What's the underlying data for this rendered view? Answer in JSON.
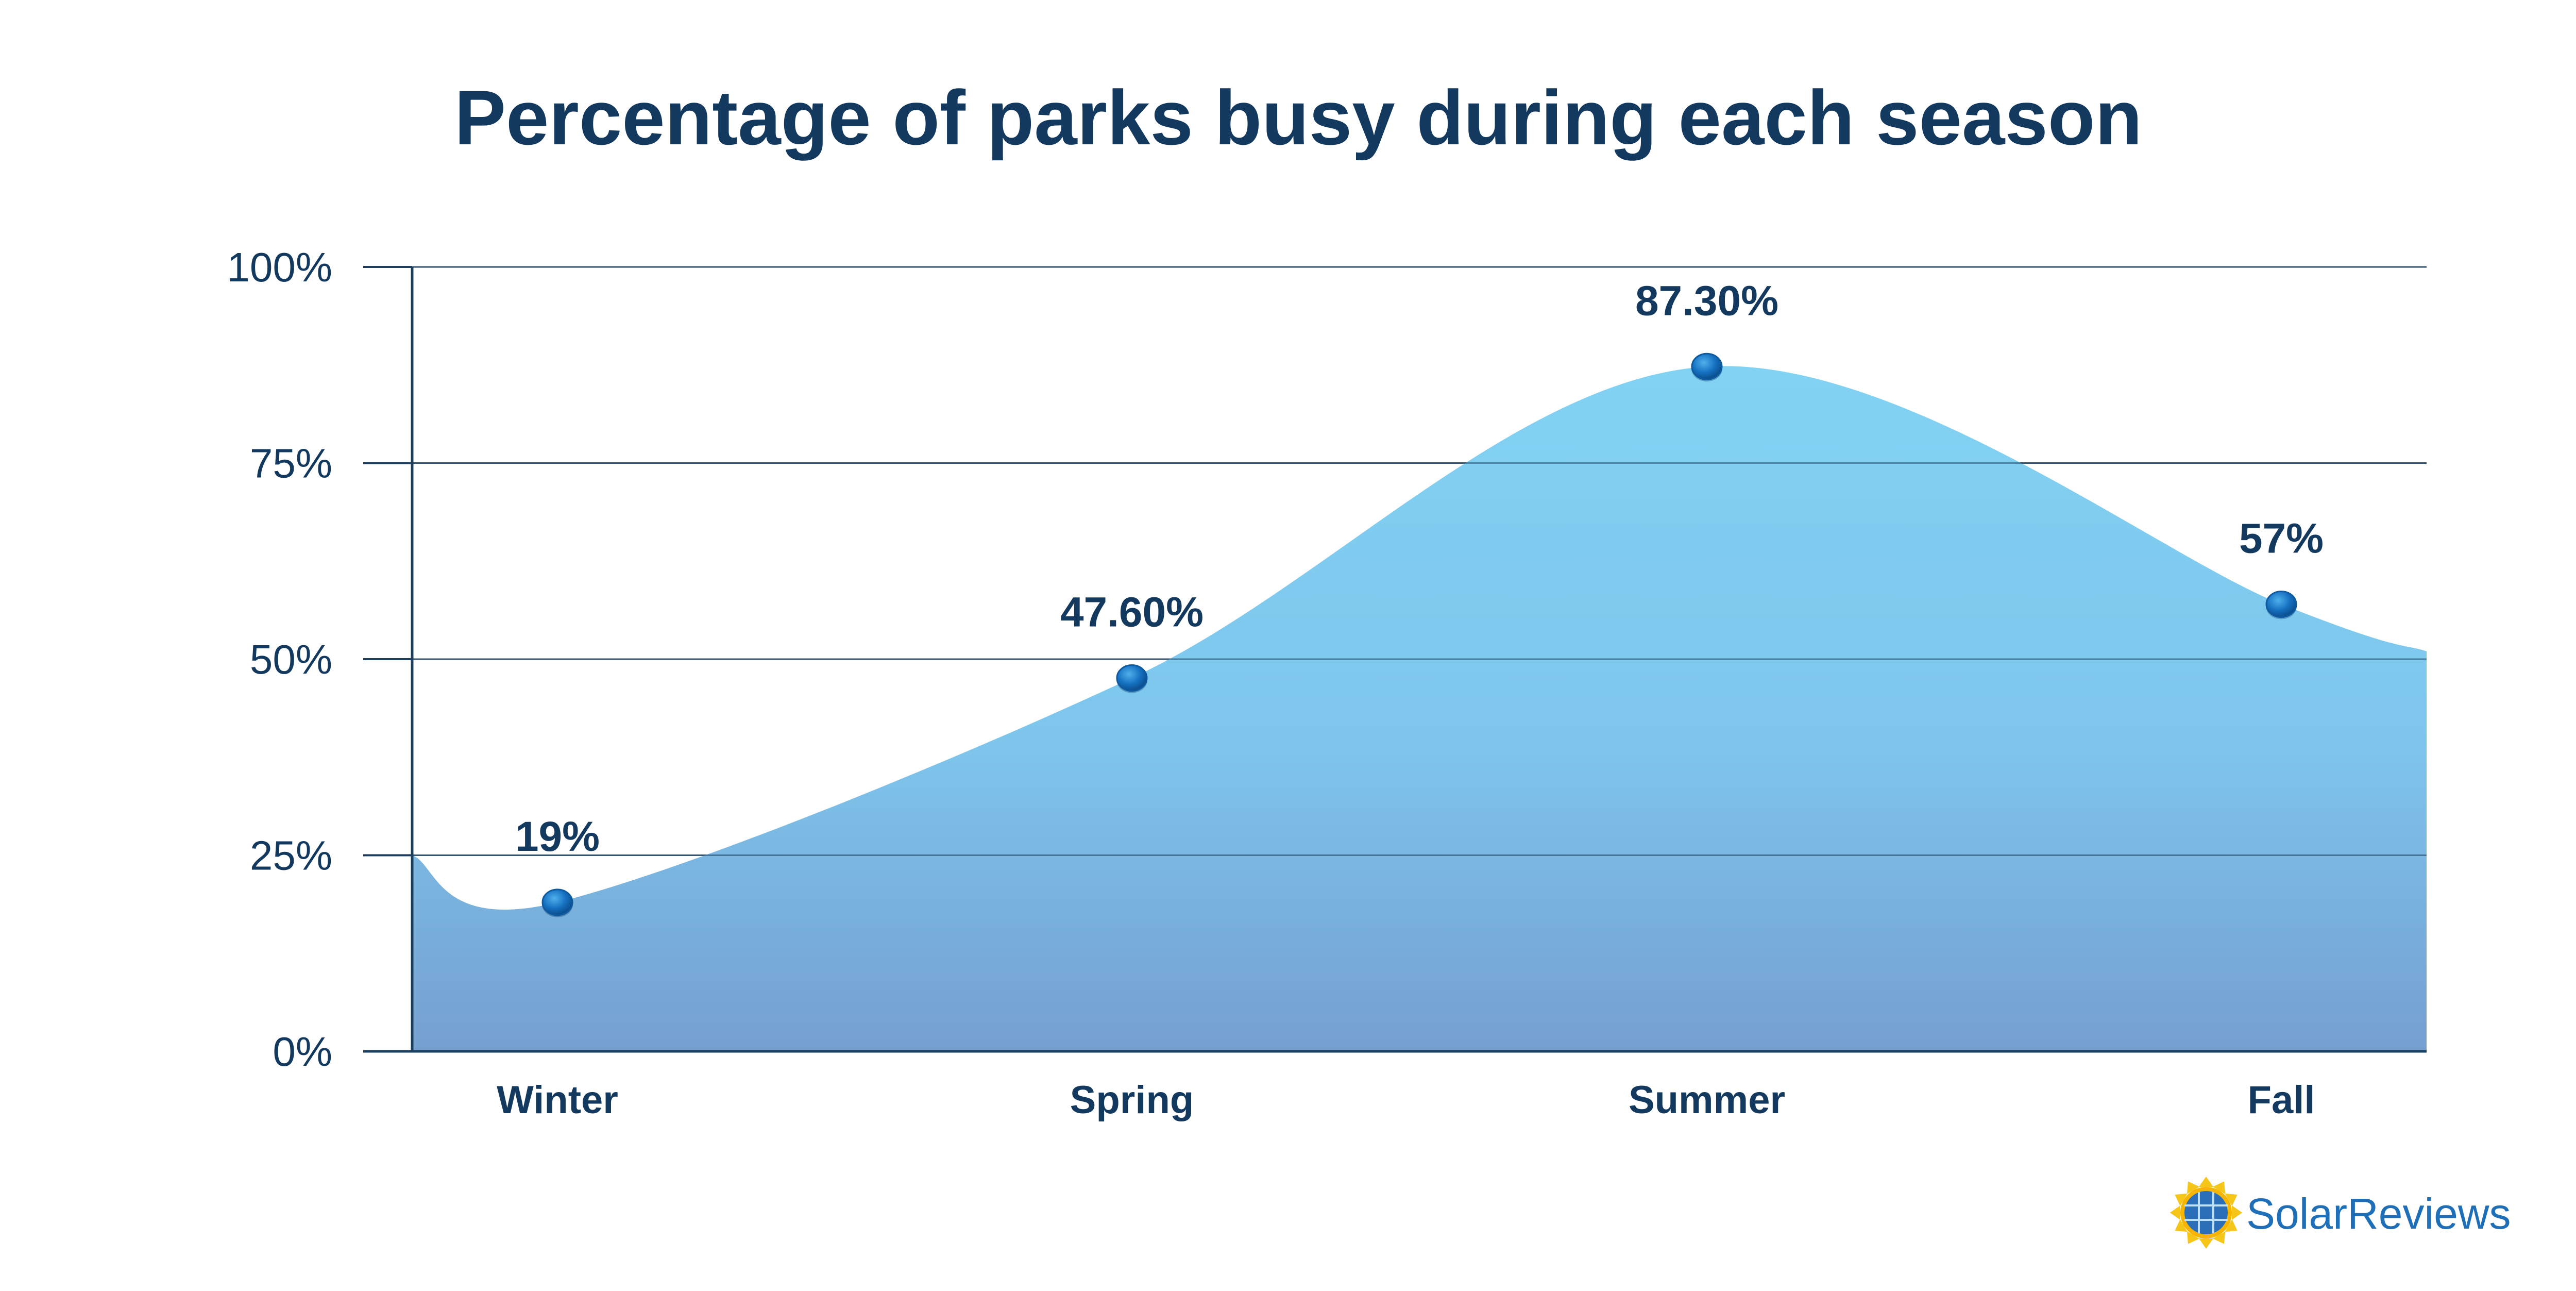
{
  "chart_data": {
    "type": "area",
    "title": "Percentage of parks busy during each season",
    "categories": [
      "Winter",
      "Spring",
      "Summer",
      "Fall"
    ],
    "values": [
      19,
      47.6,
      87.3,
      57
    ],
    "data_labels": [
      "19%",
      "47.60%",
      "87.30%",
      "57%"
    ],
    "edge_values": {
      "left": 25,
      "right": 51
    },
    "ylim": [
      0,
      100
    ],
    "yticks": [
      0,
      25,
      50,
      75,
      100
    ],
    "ytick_labels": [
      "0%",
      "25%",
      "50%",
      "75%",
      "100%"
    ],
    "xlabel": "",
    "ylabel": "",
    "grid": true,
    "legend": "none",
    "colors": {
      "text": "#13395f",
      "area_top": "#82d2f3",
      "area_bottom": "#759fcf",
      "point": "#1570c0",
      "grid": "#1d3f5e"
    }
  },
  "branding": {
    "logo_text": "SolarReviews",
    "logo_icon": "sun-solar-panel-icon"
  }
}
